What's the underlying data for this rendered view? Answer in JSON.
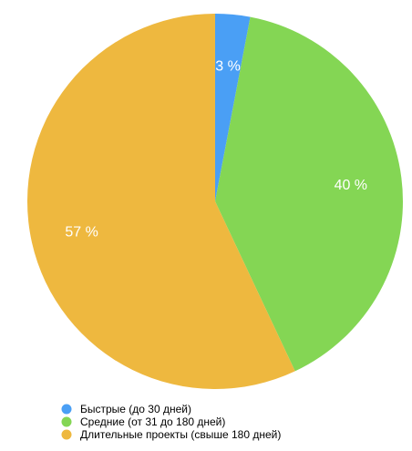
{
  "chart_data": {
    "type": "pie",
    "title": "",
    "legend_position": "bottom-left",
    "slices": [
      {
        "label": "Быстрые (до 30 дней)",
        "value": 3,
        "value_label": "3 %",
        "color": "#4a9ff5"
      },
      {
        "label": "Средние (от 31 до 180 дней)",
        "value": 40,
        "value_label": "40 %",
        "color": "#84d654"
      },
      {
        "label": "Длительные проекты (свыше 180 дней)",
        "value": 57,
        "value_label": "57 %",
        "color": "#eeb83f"
      }
    ]
  }
}
